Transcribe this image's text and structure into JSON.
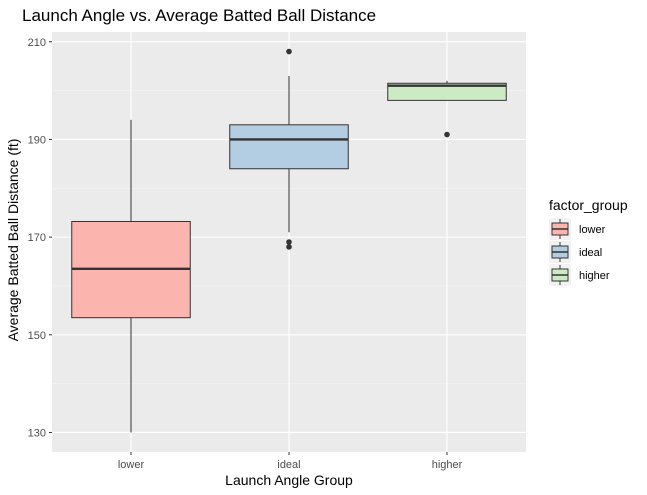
{
  "chart_data": {
    "type": "boxplot",
    "title": "Launch Angle vs. Average Batted Ball Distance",
    "xlabel": "Launch Angle Group",
    "ylabel": "Average Batted Ball Distance (ft)",
    "categories": [
      "lower",
      "ideal",
      "higher"
    ],
    "ylim": [
      126,
      212
    ],
    "yticks": [
      130,
      150,
      170,
      190,
      210
    ],
    "grid": true,
    "legend": {
      "title": "factor_group",
      "placement": "right",
      "items": [
        "lower",
        "ideal",
        "higher"
      ]
    },
    "series": [
      {
        "category": "lower",
        "whisker_low": 130,
        "q1": 153.5,
        "median": 163.5,
        "q3": 173.2,
        "whisker_high": 194,
        "outliers": [],
        "color": "#FBB4AE"
      },
      {
        "category": "ideal",
        "whisker_low": 171,
        "q1": 184,
        "median": 190,
        "q3": 193,
        "whisker_high": 203,
        "outliers": [
          208,
          169,
          168
        ],
        "color": "#B3CDE3"
      },
      {
        "category": "higher",
        "whisker_low": 198,
        "q1": 198,
        "median": 201,
        "q3": 201.5,
        "whisker_high": 202,
        "outliers": [
          191
        ],
        "color": "#CCEBC5"
      }
    ]
  }
}
